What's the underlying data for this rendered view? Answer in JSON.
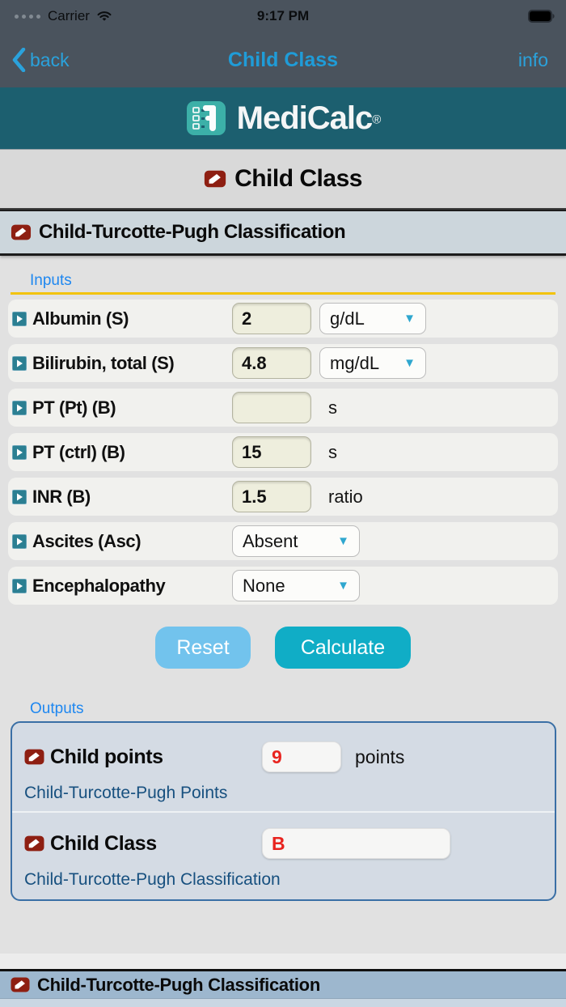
{
  "status_bar": {
    "carrier": "Carrier",
    "time": "9:17 PM"
  },
  "nav_bar": {
    "back_label": "back",
    "title": "Child Class",
    "info_label": "info"
  },
  "brand": {
    "name": "MediCalc",
    "registered_mark": "®"
  },
  "page": {
    "title": "Child Class"
  },
  "section": {
    "header": "Child-Turcotte-Pugh Classification"
  },
  "inputs": {
    "group_label": "Inputs",
    "rows": [
      {
        "label": "Albumin (S)",
        "value": "2",
        "unit": "g/dL",
        "control": "unit-select"
      },
      {
        "label": "Bilirubin, total (S)",
        "value": "4.8",
        "unit": "mg/dL",
        "control": "unit-select"
      },
      {
        "label": "PT (Pt) (B)",
        "value": "",
        "unit": "s",
        "control": "unit-text"
      },
      {
        "label": "PT (ctrl) (B)",
        "value": "15",
        "unit": "s",
        "control": "unit-text"
      },
      {
        "label": "INR (B)",
        "value": "1.5",
        "unit": "ratio",
        "control": "unit-text"
      },
      {
        "label": "Ascites (Asc)",
        "value": "Absent",
        "unit": "",
        "control": "select"
      },
      {
        "label": "Encephalopathy",
        "value": "None",
        "unit": "",
        "control": "select"
      }
    ]
  },
  "actions": {
    "reset_label": "Reset",
    "calculate_label": "Calculate"
  },
  "outputs": {
    "group_label": "Outputs",
    "rows": [
      {
        "label": "Child points",
        "value": "9",
        "unit": "points",
        "sublabel": "Child-Turcotte-Pugh Points",
        "field_width": 98
      },
      {
        "label": "Child Class",
        "value": "B",
        "unit": "",
        "sublabel": "Child-Turcotte-Pugh Classification",
        "field_width": 233
      }
    ]
  },
  "bottom_section": {
    "header": "Child-Turcotte-Pugh Classification"
  },
  "colors": {
    "nav_accent": "#2aa2dc",
    "brand_teal": "#1c5f6f",
    "logo_tile": "#3cb0a8",
    "inputs_label_blue": "#1e87f0",
    "yellow_rule": "#f2c30c",
    "field_cream": "#eeeedd",
    "dropdown_triangle": "#2fa7cf",
    "reset_blue": "#72c3ed",
    "calculate_teal": "#10adc6",
    "output_value_red": "#e8241f",
    "output_sublabel_navy": "#17507f",
    "outputs_border_blue": "#3a6fa5",
    "flag_icon_red": "#8e1f12",
    "row_marker_teal": "#2b7f92",
    "bottom_header_blue": "#9db7ce"
  }
}
